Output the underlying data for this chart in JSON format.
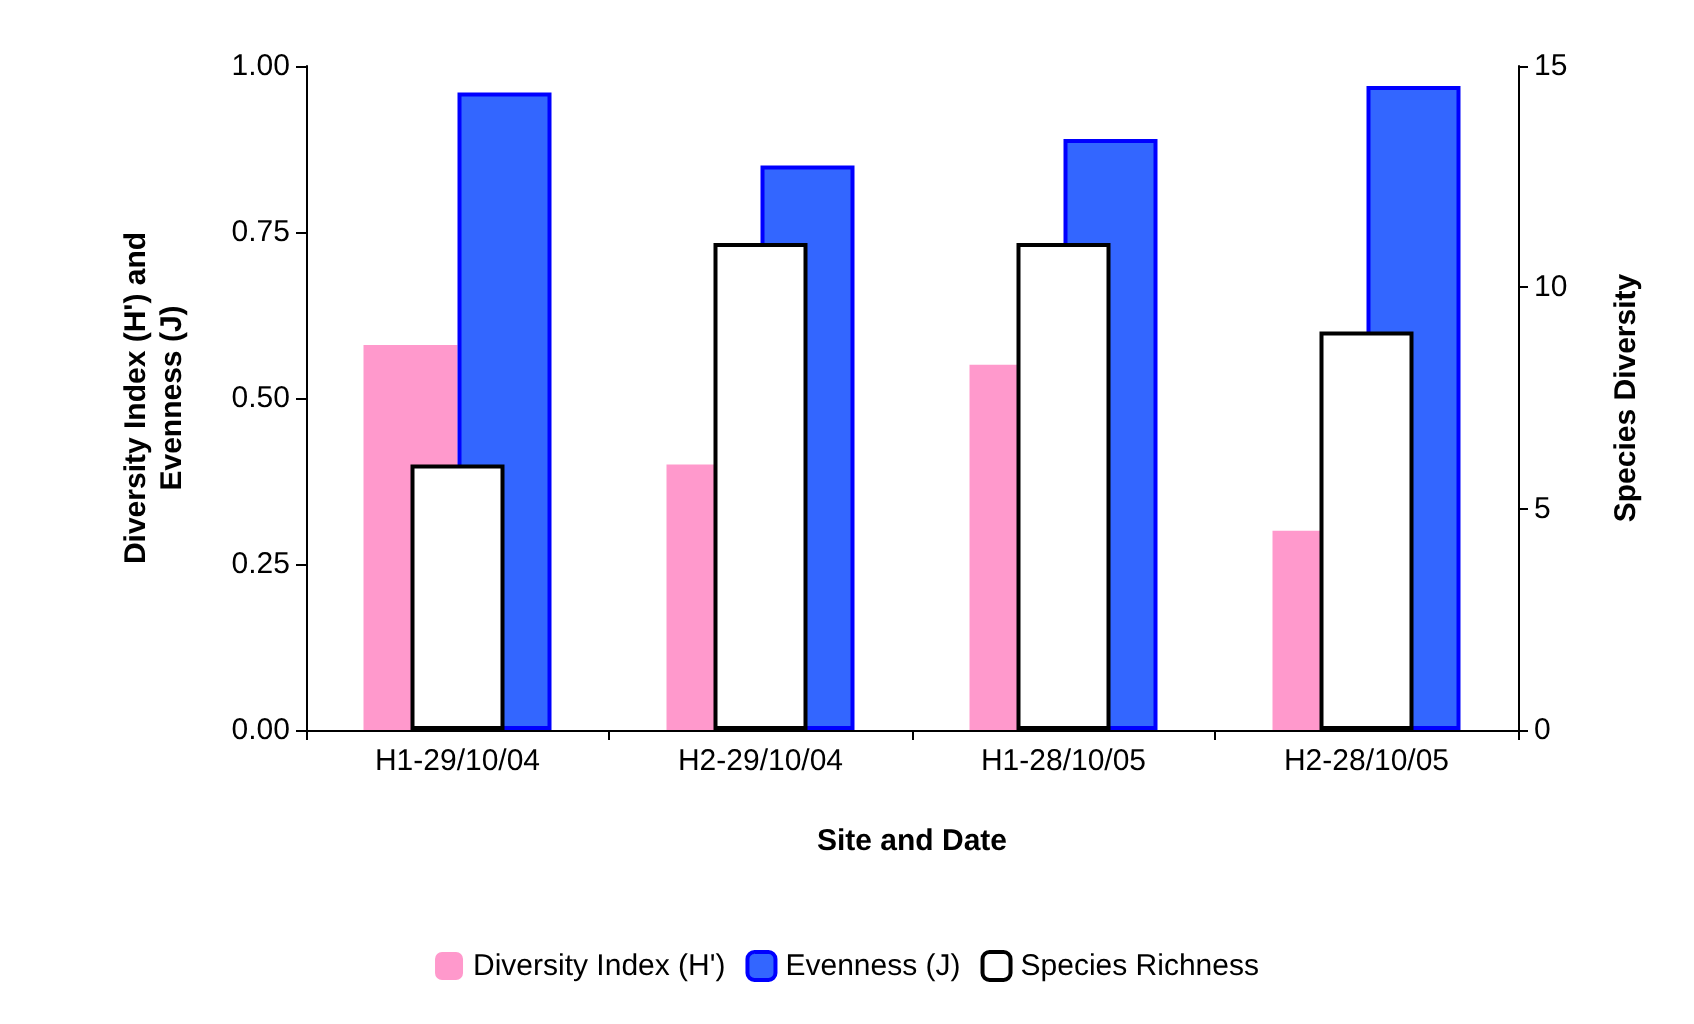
{
  "chart_data": {
    "type": "bar",
    "xlabel": "Site and Date",
    "ylabel": "Diversity Index (H') and\nEvenness (J)",
    "y2label": "Species Diversity",
    "categories": [
      "H1-29/10/04",
      "H2-29/10/04",
      "H1-28/10/05",
      "H2-28/10/05"
    ],
    "series": [
      {
        "name": "Diversity Index (H')",
        "color": "#ff99cc",
        "values": [
          0.58,
          0.4,
          0.55,
          0.3
        ]
      },
      {
        "name": "Evenness (J)",
        "color": "#3366ff",
        "values": [
          0.96,
          0.85,
          0.89,
          0.97
        ]
      },
      {
        "name": "Species Richness",
        "color": "#ffffff",
        "values": [
          6,
          11,
          11,
          9
        ],
        "axis": "y2"
      }
    ],
    "ylim": [
      0,
      1
    ],
    "yticks": [
      {
        "value": 0,
        "label": "0.00"
      },
      {
        "value": 0.25,
        "label": "0.25"
      },
      {
        "value": 0.5,
        "label": "0.50"
      },
      {
        "value": 0.75,
        "label": "0.75"
      },
      {
        "value": 1,
        "label": "1.00"
      }
    ],
    "y2lim": [
      0,
      15
    ],
    "y2ticks": [
      0,
      5,
      10,
      15
    ],
    "grid": false,
    "legend": "bottom"
  }
}
